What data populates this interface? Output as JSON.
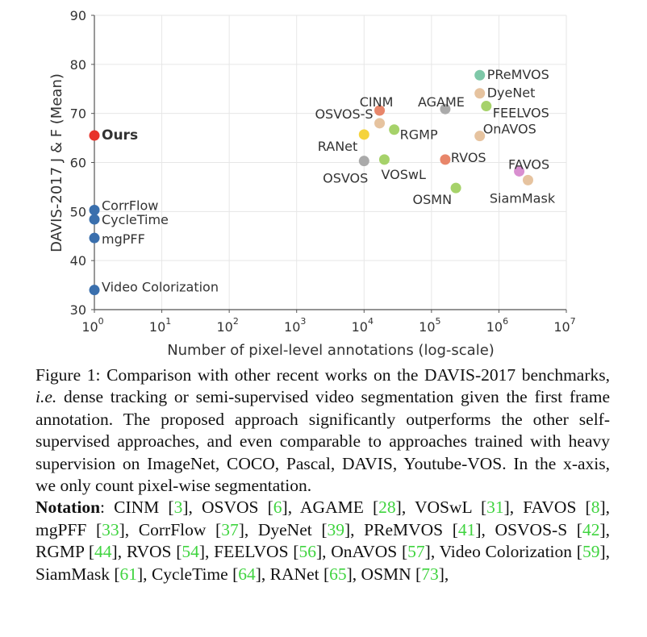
{
  "chart_data": {
    "type": "scatter",
    "xlabel": "Number of pixel-level annotations (log-scale)",
    "ylabel": "DAVIS-2017 J & F (Mean)",
    "xscale": "log",
    "xlim": [
      1,
      10000000
    ],
    "ylim": [
      30,
      90
    ],
    "x_ticks": [
      {
        "base": "10",
        "exp": "0"
      },
      {
        "base": "10",
        "exp": "1"
      },
      {
        "base": "10",
        "exp": "2"
      },
      {
        "base": "10",
        "exp": "3"
      },
      {
        "base": "10",
        "exp": "4"
      },
      {
        "base": "10",
        "exp": "5"
      },
      {
        "base": "10",
        "exp": "6"
      },
      {
        "base": "10",
        "exp": "7"
      }
    ],
    "y_ticks": [
      "30",
      "40",
      "50",
      "60",
      "70",
      "80",
      "90"
    ],
    "grid": true,
    "points": [
      {
        "label": "Ours",
        "x": 1,
        "y": 65.5,
        "color": "#e8322a",
        "bold": true
      },
      {
        "label": "CorrFlow",
        "x": 1,
        "y": 50.3,
        "color": "#3a6fad"
      },
      {
        "label": "CycleTime",
        "x": 1,
        "y": 48.4,
        "color": "#3a6fad"
      },
      {
        "label": "mgPFF",
        "x": 1,
        "y": 44.6,
        "color": "#3a6fad"
      },
      {
        "label": "Video Colorization",
        "x": 1,
        "y": 34.0,
        "color": "#3a6fad"
      },
      {
        "label": "CINM",
        "x": 17000,
        "y": 70.6,
        "color": "#e8866a"
      },
      {
        "label": "OSVOS-S",
        "x": 17000,
        "y": 68.0,
        "color": "#e6c39f"
      },
      {
        "label": "RANet",
        "x": 10000,
        "y": 65.7,
        "color": "#f5d33c"
      },
      {
        "label": "RGMP",
        "x": 28000,
        "y": 66.7,
        "color": "#a6d26a"
      },
      {
        "label": "OSVOS",
        "x": 10000,
        "y": 60.3,
        "color": "#aaaaaa"
      },
      {
        "label": "VOSwL",
        "x": 20000,
        "y": 60.6,
        "color": "#a6d26a"
      },
      {
        "label": "AGAME",
        "x": 160000,
        "y": 70.9,
        "color": "#aaaaaa"
      },
      {
        "label": "RVOS",
        "x": 160000,
        "y": 60.6,
        "color": "#e8866a"
      },
      {
        "label": "OSMN",
        "x": 230000,
        "y": 54.8,
        "color": "#a6d26a"
      },
      {
        "label": "PReMVOS",
        "x": 520000,
        "y": 77.8,
        "color": "#7ec8a8"
      },
      {
        "label": "DyeNet",
        "x": 520000,
        "y": 74.1,
        "color": "#e6c39f"
      },
      {
        "label": "FEELVOS",
        "x": 650000,
        "y": 71.5,
        "color": "#a6d26a"
      },
      {
        "label": "OnAVOS",
        "x": 520000,
        "y": 65.4,
        "color": "#e6c39f"
      },
      {
        "label": "FAVOS",
        "x": 2000000,
        "y": 58.2,
        "color": "#d98fd0"
      },
      {
        "label": "SiamMask",
        "x": 2700000,
        "y": 56.4,
        "color": "#e6c39f"
      }
    ]
  },
  "caption": {
    "figure_label": "Figure 1:",
    "text": " Comparison with other recent works on the DAVIS-2017 benchmarks, ",
    "ie": "i.e.",
    "text2": " dense tracking or semi-supervised video segmentation given the first frame annotation.  The proposed approach significantly outperforms the other self-supervised approaches, and even comparable to approaches trained with heavy supervision on ImageNet, COCO, Pascal, DAVIS, Youtube-VOS. In the x-axis, we only count pixel-wise segmentation.",
    "notation_label": "Notation",
    "notation_colon": ":",
    "notation_items": [
      {
        "name": "CINM",
        "ref": "3"
      },
      {
        "name": "OSVOS",
        "ref": "6"
      },
      {
        "name": "AGAME",
        "ref": "28"
      },
      {
        "name": "VOSwL",
        "ref": "31"
      },
      {
        "name": "FAVOS",
        "ref": "8"
      },
      {
        "name": "mgPFF",
        "ref": "33"
      },
      {
        "name": "CorrFlow",
        "ref": "37"
      },
      {
        "name": "DyeNet",
        "ref": "39"
      },
      {
        "name": "PReMVOS",
        "ref": "41"
      },
      {
        "name": "OSVOS-S",
        "ref": "42"
      },
      {
        "name": "RGMP",
        "ref": "44"
      },
      {
        "name": "RVOS",
        "ref": "54"
      },
      {
        "name": "FEELVOS",
        "ref": "56"
      },
      {
        "name": "OnAVOS",
        "ref": "57"
      },
      {
        "name": "Video Colorization",
        "ref": "59"
      },
      {
        "name": "SiamMask",
        "ref": "61"
      },
      {
        "name": "CycleTime",
        "ref": "64"
      },
      {
        "name": "RANet",
        "ref": "65"
      },
      {
        "name": "OSMN",
        "ref": "73"
      }
    ]
  }
}
